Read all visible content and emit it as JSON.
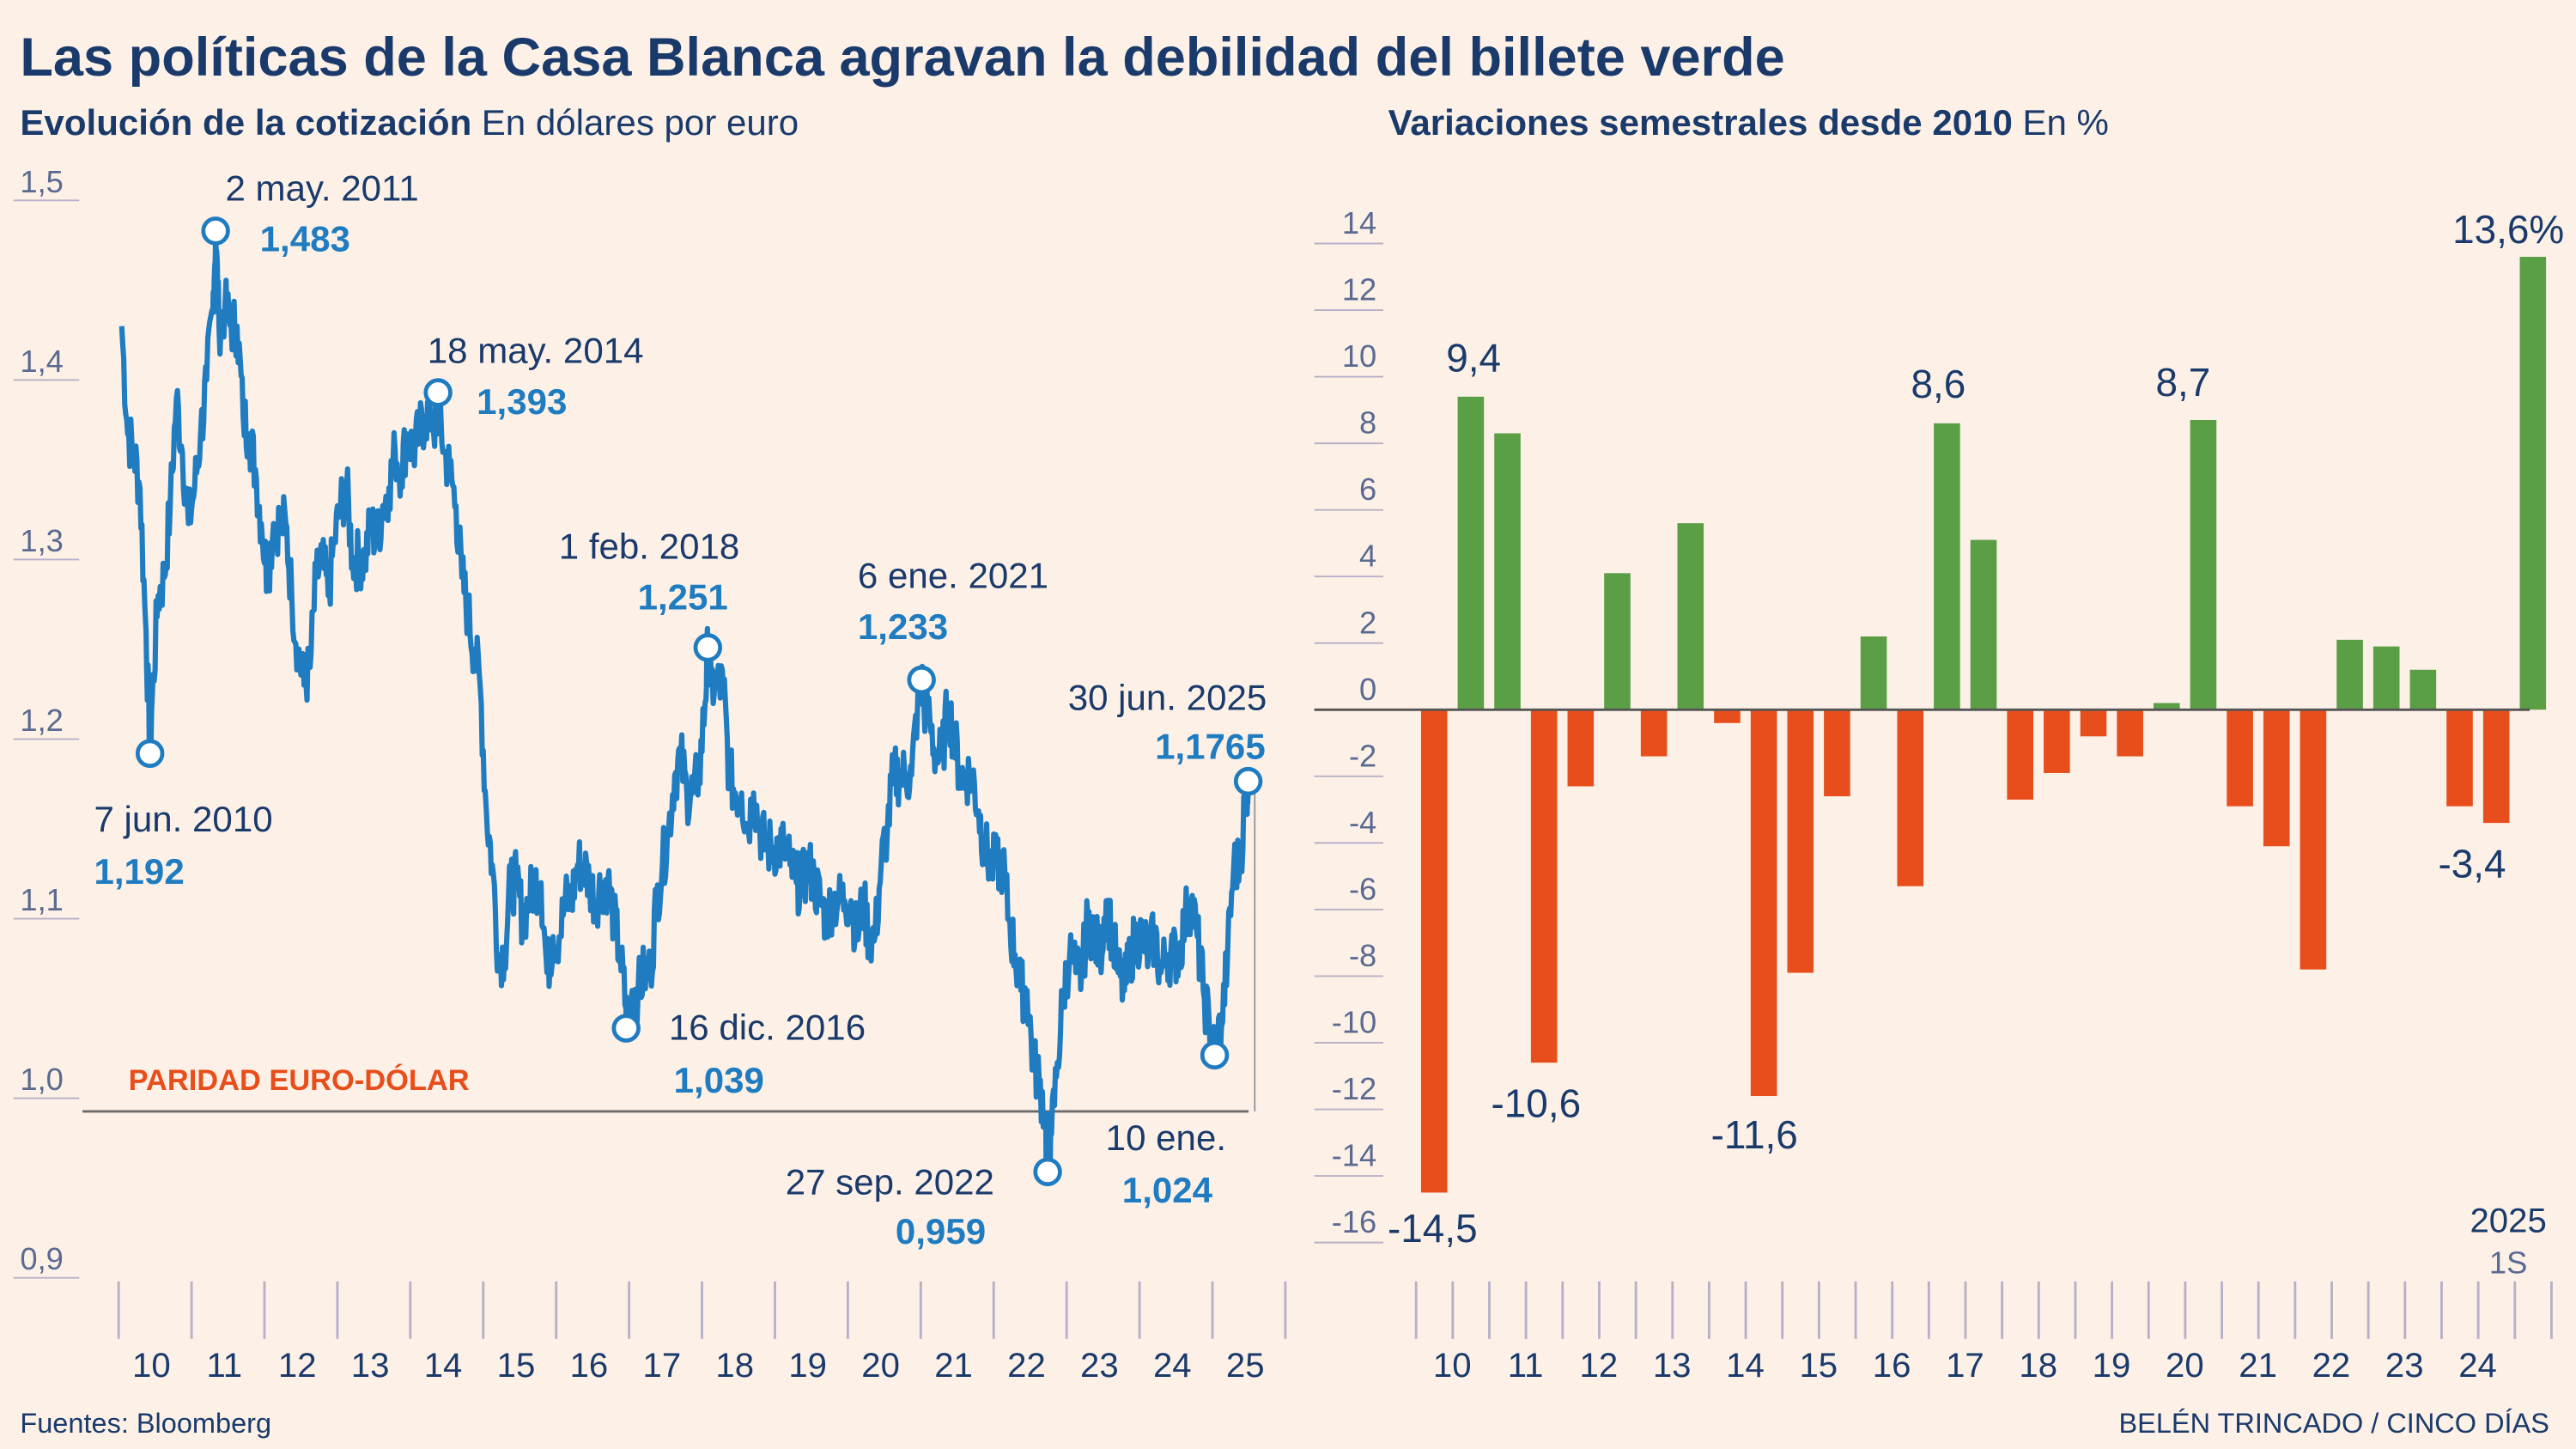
{
  "title": "Las políticas de la Casa Blanca agravan la debilidad del billete verde",
  "footer": {
    "source": "Fuentes: Bloomberg",
    "credit": "BELÉN TRINCADO / CINCO DÍAS"
  },
  "colors": {
    "background": "#fdf1e7",
    "title": "#1a3a6b",
    "line": "#1f7cc1",
    "positive": "#5a9e46",
    "negative": "#e84e1b"
  },
  "chart_data": [
    {
      "type": "line",
      "title": "Evolución de la cotización",
      "subtitle": "En dólares por euro",
      "ylim": [
        0.9,
        1.5
      ],
      "yticks": [
        "1,5",
        "1,4",
        "1,3",
        "1,2",
        "1,1",
        "1,0",
        "0,9"
      ],
      "xticks": [
        "10",
        "11",
        "12",
        "13",
        "14",
        "15",
        "16",
        "17",
        "18",
        "19",
        "20",
        "21",
        "22",
        "23",
        "24",
        "25"
      ],
      "reference_line": {
        "value": 1.0,
        "label": "PARIDAD EURO-DÓLAR"
      },
      "monthly_start": "2010-01",
      "values": [
        1.43,
        1.37,
        1.36,
        1.34,
        1.26,
        1.22,
        1.28,
        1.29,
        1.33,
        1.39,
        1.36,
        1.32,
        1.34,
        1.37,
        1.4,
        1.44,
        1.43,
        1.44,
        1.43,
        1.43,
        1.38,
        1.37,
        1.35,
        1.32,
        1.29,
        1.32,
        1.32,
        1.32,
        1.28,
        1.25,
        1.23,
        1.24,
        1.29,
        1.3,
        1.28,
        1.31,
        1.33,
        1.34,
        1.3,
        1.3,
        1.3,
        1.32,
        1.31,
        1.33,
        1.34,
        1.36,
        1.35,
        1.37,
        1.36,
        1.37,
        1.38,
        1.38,
        1.37,
        1.36,
        1.35,
        1.33,
        1.29,
        1.27,
        1.25,
        1.23,
        1.16,
        1.13,
        1.08,
        1.08,
        1.12,
        1.12,
        1.1,
        1.11,
        1.12,
        1.12,
        1.07,
        1.09,
        1.09,
        1.11,
        1.11,
        1.13,
        1.13,
        1.12,
        1.11,
        1.12,
        1.12,
        1.1,
        1.08,
        1.05,
        1.06,
        1.06,
        1.07,
        1.07,
        1.11,
        1.13,
        1.15,
        1.18,
        1.19,
        1.17,
        1.17,
        1.18,
        1.22,
        1.23,
        1.23,
        1.23,
        1.18,
        1.17,
        1.17,
        1.15,
        1.17,
        1.15,
        1.14,
        1.14,
        1.14,
        1.14,
        1.13,
        1.12,
        1.12,
        1.13,
        1.12,
        1.11,
        1.1,
        1.11,
        1.11,
        1.11,
        1.11,
        1.09,
        1.11,
        1.09,
        1.09,
        1.13,
        1.15,
        1.18,
        1.18,
        1.18,
        1.18,
        1.22,
        1.22,
        1.21,
        1.19,
        1.19,
        1.22,
        1.2,
        1.18,
        1.18,
        1.18,
        1.16,
        1.14,
        1.13,
        1.13,
        1.13,
        1.1,
        1.08,
        1.06,
        1.06,
        1.02,
        1.01,
        0.99,
        0.98,
        1.02,
        1.06,
        1.08,
        1.07,
        1.07,
        1.1,
        1.09,
        1.08,
        1.11,
        1.09,
        1.07,
        1.06,
        1.08,
        1.09,
        1.09,
        1.08,
        1.09,
        1.07,
        1.08,
        1.08,
        1.08,
        1.1,
        1.11,
        1.09,
        1.06,
        1.04,
        1.03,
        1.04,
        1.08,
        1.13,
        1.13,
        1.17
      ],
      "annotations": [
        {
          "date": "7 jun. 2010",
          "t": 2010.43,
          "value": 1.192,
          "label": "1,192"
        },
        {
          "date": "2 may. 2011",
          "t": 2011.33,
          "value": 1.483,
          "label": "1,483"
        },
        {
          "date": "18 may. 2014",
          "t": 2014.38,
          "value": 1.393,
          "label": "1,393"
        },
        {
          "date": "16 dic. 2016",
          "t": 2016.96,
          "value": 1.039,
          "label": "1,039"
        },
        {
          "date": "1 feb. 2018",
          "t": 2018.08,
          "value": 1.251,
          "label": "1,251"
        },
        {
          "date": "6 ene. 2021",
          "t": 2021.01,
          "value": 1.233,
          "label": "1,233"
        },
        {
          "date": "27 sep. 2022",
          "t": 2022.74,
          "value": 0.959,
          "label": "0,959"
        },
        {
          "date": "10 ene.",
          "t": 2025.03,
          "value": 1.024,
          "label": "1,024"
        },
        {
          "date": "30 jun. 2025",
          "t": 2025.49,
          "value": 1.1765,
          "label": "1,1765"
        }
      ]
    },
    {
      "type": "bar",
      "title": "Variaciones semestrales desde 2010",
      "subtitle": "En %",
      "ylim": [
        -16,
        14
      ],
      "yticks": [
        "14",
        "12",
        "10",
        "8",
        "6",
        "4",
        "2",
        "0",
        "-2",
        "-4",
        "-6",
        "-8",
        "-10",
        "-12",
        "-14",
        "-16"
      ],
      "xticks": [
        "10",
        "11",
        "12",
        "13",
        "14",
        "15",
        "16",
        "17",
        "18",
        "19",
        "20",
        "21",
        "22",
        "23",
        "24"
      ],
      "last_label": {
        "year": "2025",
        "semester": "1S"
      },
      "categories": [
        "2010 1S",
        "2010 2S",
        "2011 1S",
        "2011 2S",
        "2012 1S",
        "2012 2S",
        "2013 1S",
        "2013 2S",
        "2014 1S",
        "2014 2S",
        "2015 1S",
        "2015 2S",
        "2016 1S",
        "2016 2S",
        "2017 1S",
        "2017 2S",
        "2018 1S",
        "2018 2S",
        "2019 1S",
        "2019 2S",
        "2020 1S",
        "2020 2S",
        "2021 1S",
        "2021 2S",
        "2022 1S",
        "2022 2S",
        "2023 1S",
        "2023 2S",
        "2024 1S",
        "2024 2S",
        "2025 1S"
      ],
      "values": [
        -14.5,
        9.4,
        8.3,
        -10.6,
        -2.3,
        4.1,
        -1.4,
        5.6,
        -0.4,
        -11.6,
        -7.9,
        -2.6,
        2.2,
        -5.3,
        8.6,
        5.1,
        -2.7,
        -1.9,
        -0.8,
        -1.4,
        0.2,
        8.7,
        -2.9,
        -4.1,
        -7.8,
        2.1,
        1.9,
        1.2,
        -2.9,
        -3.4,
        13.6
      ],
      "data_labels": [
        {
          "index": 0,
          "text": "-14,5"
        },
        {
          "index": 1,
          "text": "9,4"
        },
        {
          "index": 3,
          "text": "-10,6"
        },
        {
          "index": 9,
          "text": "-11,6"
        },
        {
          "index": 14,
          "text": "8,6"
        },
        {
          "index": 21,
          "text": "8,7"
        },
        {
          "index": 29,
          "text": "-3,4"
        },
        {
          "index": 30,
          "text": "13,6%"
        }
      ]
    }
  ]
}
